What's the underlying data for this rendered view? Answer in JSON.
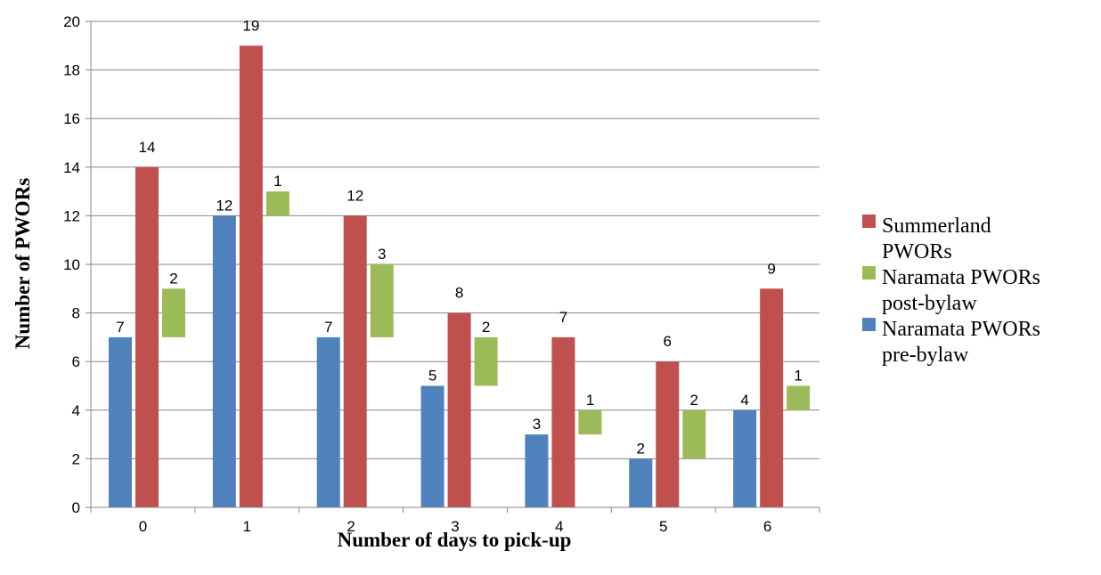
{
  "chart_data": {
    "type": "bar",
    "xlabel": "Number of days to pick-up",
    "ylabel": "Number of PWORs",
    "ylim": [
      0,
      20
    ],
    "yticks": [
      0,
      2,
      4,
      6,
      8,
      10,
      12,
      14,
      16,
      18,
      20
    ],
    "categories": [
      "0",
      "1",
      "2",
      "3",
      "4",
      "5",
      "6"
    ],
    "grid": "horizontal",
    "legend_position": "right",
    "series": [
      {
        "name": "Naramata PWORs pre-bylaw",
        "color": "#4F81BD",
        "values": [
          7,
          12,
          7,
          5,
          3,
          2,
          4
        ],
        "labels": [
          "7",
          "12",
          "7",
          "5",
          "3",
          "2",
          "4"
        ]
      },
      {
        "name": "Summerland PWORs",
        "color": "#C0504D",
        "values": [
          14,
          19,
          12,
          8,
          7,
          6,
          9
        ],
        "labels": [
          "14",
          "19",
          "12",
          "8",
          "7",
          "6",
          "9"
        ]
      },
      {
        "name": "Naramata PWORs post-bylaw",
        "color": "#9BBB59",
        "stacked_on": "Naramata PWORs pre-bylaw",
        "values": [
          2,
          1,
          3,
          2,
          1,
          2,
          1
        ],
        "labels": [
          "2",
          "1",
          "3",
          "2",
          "1",
          "2",
          "1"
        ]
      }
    ],
    "legend": [
      {
        "series": "Summerland PWORs",
        "lines": [
          "Summerland",
          "PWORs"
        ]
      },
      {
        "series": "Naramata PWORs post-bylaw",
        "lines": [
          "Naramata PWORs",
          "post-bylaw"
        ]
      },
      {
        "series": "Naramata PWORs pre-bylaw",
        "lines": [
          "Naramata PWORs",
          "pre-bylaw"
        ]
      }
    ]
  }
}
